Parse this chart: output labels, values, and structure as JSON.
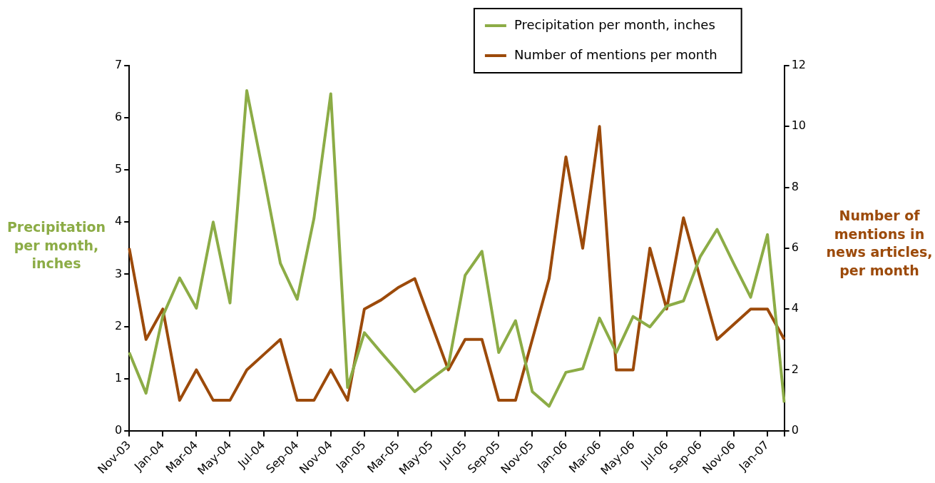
{
  "chart_data": {
    "type": "line",
    "ylabel": "Precipitation per month, inches",
    "y2label": "Number of mentions in news articles, per month",
    "categories": [
      "Nov-03",
      null,
      "Jan-04",
      null,
      "Mar-04",
      null,
      "May-04",
      null,
      "Jul-04",
      null,
      "Sep-04",
      null,
      "Nov-04",
      null,
      "Jan-05",
      null,
      "Mar-05",
      null,
      "May-05",
      null,
      "Jul-05",
      null,
      "Sep-05",
      null,
      "Nov-05",
      null,
      "Jan-06",
      null,
      "Mar-06",
      null,
      "May-06",
      null,
      "Jul-06",
      null,
      "Sep-06",
      null,
      "Nov-06",
      null,
      "Jan-07",
      null
    ],
    "series": [
      {
        "name": "Precipitation per month, inches",
        "color": "#8cac46",
        "values": [
          1.5,
          0.72,
          2.2,
          2.93,
          2.35,
          4.0,
          2.45,
          6.52,
          4.9,
          3.21,
          2.52,
          4.07,
          6.46,
          0.83,
          1.88,
          1.5,
          1.13,
          0.75,
          1.0,
          1.24,
          2.98,
          3.44,
          1.5,
          2.11,
          0.75,
          0.47,
          1.12,
          1.19,
          2.16,
          1.5,
          2.19,
          1.99,
          2.39,
          2.49,
          3.34,
          3.86,
          3.2,
          2.56,
          3.76,
          0.54
        ]
      },
      {
        "name": "Number of mentions per month",
        "color": "#9c4a0a",
        "axis": "y2",
        "values": [
          6,
          3,
          4,
          1,
          2,
          1,
          1,
          2,
          2.5,
          3,
          1,
          1,
          2,
          1,
          4,
          4.3,
          4.7,
          5,
          3.5,
          2,
          3,
          3,
          1,
          1,
          3,
          5,
          9,
          6,
          10,
          2,
          2,
          6,
          4,
          7,
          5,
          3,
          3.5,
          4,
          4,
          3
        ]
      }
    ],
    "ylim": [
      0,
      7
    ],
    "yticks": [
      0,
      1,
      2,
      3,
      4,
      5,
      6,
      7
    ],
    "y2lim": [
      0,
      12
    ],
    "y2ticks": [
      0,
      2,
      4,
      6,
      8,
      10,
      12
    ],
    "grid": false,
    "legend": "top right",
    "marker": "none",
    "line_style": "solid"
  }
}
